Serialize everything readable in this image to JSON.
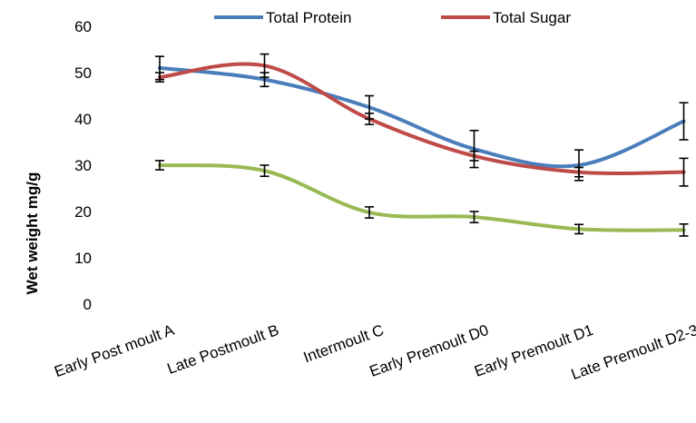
{
  "chart_data": {
    "type": "line",
    "smooth": true,
    "title": "",
    "xlabel": "",
    "ylabel": "Wet weight mg/g",
    "ylim": [
      0,
      60
    ],
    "yticks": [
      0,
      10,
      20,
      30,
      40,
      50,
      60
    ],
    "grid": false,
    "legend_position": "top",
    "categories": [
      "Early Post moult A",
      "Late Postmoult B",
      "Intermoult C",
      "Early Premoult D0",
      "Early Premoult D1",
      "Late Premoult D2-3"
    ],
    "series": [
      {
        "name": "Total Protein",
        "color": "#4a7ebb",
        "values": [
          51,
          48.5,
          42.5,
          33.5,
          30,
          39.5
        ],
        "errors": [
          2.5,
          1.5,
          2.5,
          4,
          3.3,
          4
        ]
      },
      {
        "name": "Total Sugar",
        "color": "#be4b48",
        "values": [
          49,
          51.5,
          40,
          32,
          28.5,
          28.5
        ],
        "errors": [
          1,
          2.5,
          1.2,
          1,
          1,
          3
        ]
      },
      {
        "color": "#98b954",
        "values": [
          30,
          28.8,
          19.8,
          18.8,
          16.2,
          16
        ],
        "errors": [
          1,
          1.2,
          1.2,
          1.2,
          1,
          1.3
        ]
      }
    ]
  }
}
